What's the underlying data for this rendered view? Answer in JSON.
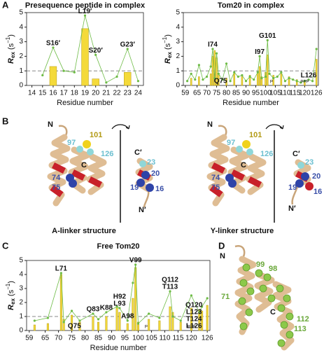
{
  "panels": {
    "a": "A",
    "b": "B",
    "c": "C",
    "d": "D"
  },
  "chart_data": [
    {
      "type": "bar",
      "title": "Presequence peptide in complex",
      "x_label": "Residue number",
      "y_label": {
        "symbol": "R",
        "sub": "ex",
        "unit": "(s",
        "sup": "−1",
        "close": ")"
      },
      "xlim": [
        13.5,
        24.5
      ],
      "ylim": [
        0,
        5
      ],
      "xticks": [
        14,
        15,
        16,
        17,
        18,
        19,
        20,
        21,
        22,
        23,
        24
      ],
      "yticks": [
        0,
        1,
        2,
        3,
        4,
        5
      ],
      "threshold": 1,
      "bars": {
        "x": [
          16,
          19,
          20,
          23
        ],
        "values": [
          1.3,
          3.9,
          0.45,
          0.9
        ],
        "color": "#f4da3a"
      },
      "line": {
        "x": [
          15,
          16,
          17,
          18,
          19,
          20,
          21,
          22,
          23,
          24
        ],
        "values": [
          0.7,
          2.6,
          1.0,
          0.9,
          4.8,
          2.1,
          0.2,
          0.6,
          2.5,
          0.3
        ],
        "color": "#6dbb45"
      },
      "annotations": [
        {
          "lines": [
            "S16′"
          ],
          "residue": 16
        },
        {
          "lines": [
            "L19′"
          ],
          "residue": 19
        },
        {
          "lines": [
            "S20′"
          ],
          "residue": 20
        },
        {
          "lines": [
            "G23′"
          ],
          "residue": 23
        }
      ],
      "prolines": []
    },
    {
      "type": "bar",
      "title": "Tom20 in complex",
      "x_label": "Residue number",
      "y_label": {
        "symbol": "R",
        "sub": "ex",
        "unit": "(s",
        "sup": "−1",
        "close": ")"
      },
      "xlim": [
        58,
        127
      ],
      "ylim": [
        0,
        5
      ],
      "xticks": [
        59,
        65,
        70,
        75,
        80,
        85,
        90,
        95,
        100,
        105,
        110,
        115,
        120,
        126
      ],
      "yticks": [
        0,
        1,
        2,
        3,
        4,
        5
      ],
      "threshold": 1,
      "bars": {
        "x": [
          62,
          66,
          72,
          73,
          74,
          75,
          76,
          80,
          84,
          88,
          92,
          96,
          97,
          98,
          100,
          101,
          104,
          108,
          112,
          116,
          120,
          126
        ],
        "values": [
          0.5,
          0.6,
          0.8,
          2.0,
          2.4,
          1.9,
          0.7,
          0.5,
          0.9,
          0.6,
          0.7,
          0.9,
          1.3,
          0.6,
          0.9,
          2.1,
          0.7,
          0.8,
          0.6,
          0.4,
          0.3,
          1.8
        ],
        "color": "#f4da3a"
      },
      "line": {
        "x": [
          60,
          62,
          64,
          66,
          68,
          70,
          72,
          73,
          74,
          75,
          76,
          78,
          80,
          82,
          84,
          86,
          88,
          90,
          92,
          94,
          96,
          97,
          98,
          100,
          101,
          102,
          104,
          106,
          108,
          110,
          112,
          114,
          116,
          118,
          120,
          122,
          124,
          126
        ],
        "values": [
          0.3,
          0.8,
          0.4,
          1.4,
          0.4,
          0.6,
          1.3,
          2.5,
          0.5,
          2.2,
          0.8,
          0.4,
          1.5,
          0.3,
          0.9,
          0.6,
          0.7,
          0.3,
          0.6,
          0.4,
          0.9,
          2.0,
          0.5,
          0.6,
          3.1,
          0.8,
          0.5,
          0.6,
          0.9,
          0.3,
          0.5,
          0.4,
          0.3,
          0.2,
          0.3,
          0.4,
          0.3,
          2.5
        ],
        "color": "#6dbb45"
      },
      "annotations": [
        {
          "lines": [
            "I74"
          ],
          "residue": 73
        },
        {
          "lines": [
            "Q75"
          ],
          "residue": 77
        },
        {
          "lines": [
            "I97"
          ],
          "residue": 97
        },
        {
          "lines": [
            "G101"
          ],
          "residue": 101
        },
        {
          "lines": [
            "L126"
          ],
          "residue": 122
        }
      ],
      "prolines": [
        {
          "text": "P",
          "residue": 103
        },
        {
          "text": "PPP",
          "residue": 120
        }
      ]
    },
    {
      "type": "bar",
      "title": "Free Tom20",
      "x_label": "Residue number",
      "y_label": {
        "symbol": "R",
        "sub": "ex",
        "unit": "(s",
        "sup": "−1",
        "close": ")"
      },
      "xlim": [
        58,
        127
      ],
      "ylim": [
        0,
        5
      ],
      "xticks": [
        59,
        65,
        70,
        75,
        80,
        85,
        90,
        95,
        100,
        105,
        110,
        115,
        120,
        126
      ],
      "yticks": [
        0,
        1,
        2,
        3,
        4,
        5
      ],
      "threshold": 1,
      "bars": {
        "x": [
          61,
          66,
          71,
          72,
          75,
          78,
          83,
          85,
          88,
          92,
          93,
          96,
          98,
          99,
          100,
          104,
          108,
          112,
          113,
          116,
          120,
          123,
          124,
          126
        ],
        "values": [
          0.4,
          0.5,
          4.0,
          0.8,
          1.1,
          0.6,
          1.0,
          0.6,
          1.0,
          1.6,
          1.3,
          0.5,
          2.3,
          4.5,
          0.6,
          0.8,
          0.7,
          1.7,
          1.3,
          0.6,
          1.6,
          1.5,
          1.4,
          1.8
        ],
        "color": "#f4da3a"
      },
      "line": {
        "x": [
          61,
          66,
          71,
          72,
          75,
          78,
          83,
          85,
          88,
          92,
          93,
          96,
          98,
          99,
          100,
          104,
          108,
          112,
          113,
          116,
          120,
          123,
          124,
          126
        ],
        "values": [
          0.7,
          0.9,
          4.1,
          0.6,
          1.4,
          0.7,
          1.2,
          0.8,
          1.3,
          1.7,
          1.6,
          0.7,
          3.4,
          4.7,
          0.5,
          1.2,
          0.9,
          2.8,
          1.0,
          0.7,
          2.5,
          1.3,
          1.7,
          2.3
        ],
        "color": "#6dbb45"
      },
      "annotations": [
        {
          "lines": [
            "L71"
          ],
          "residue": 71
        },
        {
          "lines": [
            "Q75"
          ],
          "residue": 76
        },
        {
          "lines": [
            "Q83"
          ],
          "residue": 83
        },
        {
          "lines": [
            "K88"
          ],
          "residue": 88
        },
        {
          "lines": [
            "A98"
          ],
          "residue": 96
        },
        {
          "lines": [
            "H92",
            "L93"
          ],
          "residue": 93
        },
        {
          "lines": [
            "V99"
          ],
          "residue": 99
        },
        {
          "lines": [
            "Q112",
            "T113"
          ],
          "residue": 112
        },
        {
          "lines": [
            "Q120",
            "L123",
            "T124",
            "L126"
          ],
          "residue": 121
        }
      ],
      "prolines": [
        {
          "text": "P",
          "residue": 103
        },
        {
          "text": "PPP",
          "residue": 120
        }
      ]
    }
  ],
  "structures": {
    "a_linker": {
      "title": "A-linker structure",
      "tom20": [
        "N",
        "97",
        "101",
        "126",
        "C",
        "74",
        "75"
      ],
      "peptide": [
        "C′",
        "23",
        "20",
        "19",
        "16",
        "N′"
      ]
    },
    "y_linker": {
      "title": "Y-linker structure",
      "tom20": [
        "N",
        "97",
        "101",
        "126",
        "C",
        "74",
        "75"
      ],
      "peptide": [
        "C′",
        "23",
        "20",
        "19",
        "16",
        "N′"
      ]
    },
    "free": {
      "labels": [
        "N",
        "99",
        "98",
        "71",
        "C",
        "112",
        "113"
      ]
    }
  }
}
